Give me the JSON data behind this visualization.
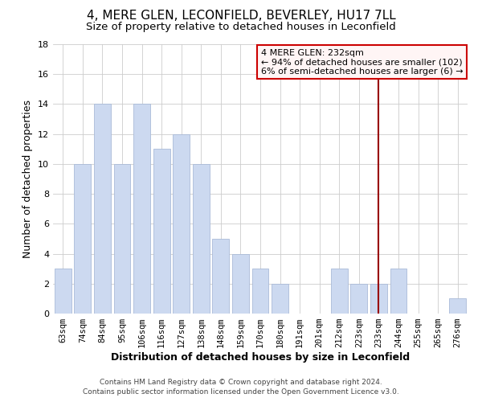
{
  "title": "4, MERE GLEN, LECONFIELD, BEVERLEY, HU17 7LL",
  "subtitle": "Size of property relative to detached houses in Leconfield",
  "xlabel": "Distribution of detached houses by size in Leconfield",
  "ylabel": "Number of detached properties",
  "bin_labels": [
    "63sqm",
    "74sqm",
    "84sqm",
    "95sqm",
    "106sqm",
    "116sqm",
    "127sqm",
    "138sqm",
    "148sqm",
    "159sqm",
    "170sqm",
    "180sqm",
    "191sqm",
    "201sqm",
    "212sqm",
    "223sqm",
    "233sqm",
    "244sqm",
    "255sqm",
    "265sqm",
    "276sqm"
  ],
  "bar_heights": [
    3,
    10,
    14,
    10,
    14,
    11,
    12,
    10,
    5,
    4,
    3,
    2,
    0,
    0,
    3,
    2,
    2,
    3,
    0,
    0,
    1
  ],
  "bar_color": "#ccd9f0",
  "bar_edgecolor": "#aabbd8",
  "grid_color": "#cccccc",
  "vline_color": "#990000",
  "legend_title": "4 MERE GLEN: 232sqm",
  "legend_line1": "← 94% of detached houses are smaller (102)",
  "legend_line2": "6% of semi-detached houses are larger (6) →",
  "legend_box_facecolor": "#fff5f5",
  "legend_box_edgecolor": "#cc0000",
  "footer_line1": "Contains HM Land Registry data © Crown copyright and database right 2024.",
  "footer_line2": "Contains public sector information licensed under the Open Government Licence v3.0.",
  "ylim": [
    0,
    18
  ],
  "yticks": [
    0,
    2,
    4,
    6,
    8,
    10,
    12,
    14,
    16,
    18
  ],
  "background_color": "#ffffff",
  "title_fontsize": 11,
  "subtitle_fontsize": 9.5,
  "xlabel_fontsize": 9,
  "ylabel_fontsize": 9,
  "tick_fontsize": 7.5,
  "footer_fontsize": 6.5,
  "legend_fontsize": 8,
  "vline_x_index": 16
}
